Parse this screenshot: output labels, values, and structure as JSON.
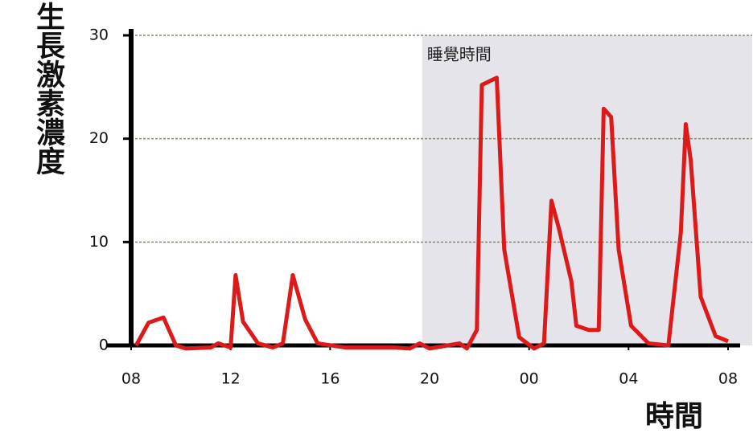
{
  "chart_data": {
    "type": "line",
    "y_label": "生長激素濃度",
    "x_label": "時間",
    "band": {
      "label": "睡覺時間",
      "x": [
        19.7,
        32
      ]
    },
    "xlim": [
      8,
      32
    ],
    "ylim": [
      0,
      30
    ],
    "xticks": [
      {
        "value": 8,
        "label": "08"
      },
      12,
      16,
      20,
      {
        "value": 24,
        "label": "00"
      },
      {
        "value": 28,
        "label": "04"
      },
      {
        "value": 32,
        "label": "08"
      }
    ],
    "yticks": [
      0,
      10,
      20,
      30
    ],
    "grid": true,
    "series": [
      {
        "color": "#dd1a1a",
        "x": [
          8.2,
          8.7,
          9.3,
          9.8,
          10.2,
          11.2,
          11.5,
          12.0,
          12.2,
          12.5,
          13.1,
          13.7,
          14.1,
          14.5,
          15.0,
          15.5,
          16.6,
          18.6,
          19.2,
          19.6,
          20.0,
          21.2,
          21.5,
          21.9,
          22.1,
          22.7,
          23.0,
          23.6,
          24.2,
          24.6,
          24.9,
          25.2,
          25.7,
          25.9,
          26.4,
          26.8,
          27.0,
          27.3,
          27.6,
          28.1,
          28.8,
          29.6,
          30.1,
          30.3,
          30.5,
          30.9,
          31.5,
          32.0
        ],
        "values": [
          0,
          2.2,
          2.7,
          0,
          -0.3,
          -0.2,
          0.2,
          -0.2,
          6.8,
          2.3,
          0.2,
          -0.2,
          0.2,
          6.8,
          2.5,
          0.2,
          -0.2,
          -0.2,
          -0.3,
          0.2,
          -0.3,
          0.2,
          -0.3,
          1.5,
          25.2,
          25.9,
          9.3,
          0.8,
          -0.3,
          0.2,
          14.0,
          11.3,
          6.2,
          1.9,
          1.5,
          1.5,
          22.9,
          22.1,
          9.3,
          1.9,
          0.2,
          0,
          10.9,
          21.4,
          17.9,
          4.7,
          0.9,
          0.4
        ]
      }
    ]
  }
}
